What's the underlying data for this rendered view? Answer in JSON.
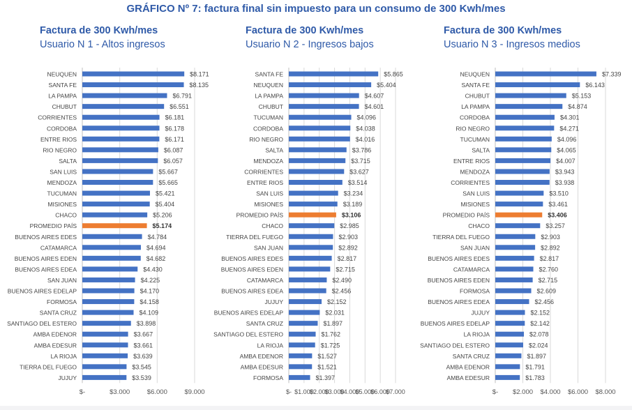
{
  "title": "GRÁFICO Nº 7: factura final sin impuesto para un consumo de 300 Kwh/mes",
  "colors": {
    "bar": "#4472c4",
    "highlight": "#ed7d31",
    "title": "#2f5aa8",
    "grid": "#d9d9d9"
  },
  "chart_data": [
    {
      "type": "bar",
      "orientation": "horizontal",
      "title": "Factura de 300 Kwh/mes",
      "subtitle": "Usuario N 1 - Altos ingresos",
      "xlim": [
        0,
        9000
      ],
      "ticks": [
        0,
        3000,
        6000,
        9000
      ],
      "tick_labels": [
        "$-",
        "$3.000",
        "$6.000",
        "$9.000"
      ],
      "grid": true,
      "highlight": "PROMEDIO PAÍS",
      "categories": [
        "NEUQUEN",
        "SANTA FE",
        "LA PAMPA",
        "CHUBUT",
        "CORRIENTES",
        "CORDOBA",
        "ENTRE RIOS",
        "RIO NEGRO",
        "SALTA",
        "SAN LUIS",
        "MENDOZA",
        "TUCUMAN",
        "MISIONES",
        "CHACO",
        "PROMEDIO PAÍS",
        "BUENOS AIRES EDES",
        "CATAMARCA",
        "BUENOS AIRES EDEN",
        "BUENOS AIRES EDEA",
        "SAN JUAN",
        "BUENOS AIRES EDELAP",
        "FORMOSA",
        "SANTA CRUZ",
        "SANTIAGO DEL ESTERO",
        "AMBA EDENOR",
        "AMBA EDESUR",
        "LA RIOJA",
        "TIERRA DEL FUEGO",
        "JUJUY"
      ],
      "values": [
        8171,
        8135,
        6791,
        6551,
        6181,
        6178,
        6171,
        6087,
        6057,
        5667,
        5665,
        5421,
        5404,
        5206,
        5174,
        4784,
        4694,
        4682,
        4430,
        4225,
        4170,
        4158,
        4109,
        3898,
        3667,
        3661,
        3639,
        3545,
        3539
      ],
      "labels": [
        "$8.171",
        "$8.135",
        "$6.791",
        "$6.551",
        "$6.181",
        "$6.178",
        "$6.171",
        "$6.087",
        "$6.057",
        "$5.667",
        "$5.665",
        "$5.421",
        "$5.404",
        "$5.206",
        "$5.174",
        "$4.784",
        "$4.694",
        "$4.682",
        "$4.430",
        "$4.225",
        "$4.170",
        "$4.158",
        "$4.109",
        "$3.898",
        "$3.667",
        "$3.661",
        "$3.639",
        "$3.545",
        "$3.539"
      ]
    },
    {
      "type": "bar",
      "orientation": "horizontal",
      "title": "Factura de 300 Kwh/mes",
      "subtitle": "Usuario N 2 - Ingresos bajos",
      "xlim": [
        0,
        7000
      ],
      "ticks": [
        0,
        1000,
        2000,
        3000,
        4000,
        5000,
        6000,
        7000
      ],
      "tick_labels": [
        "$-",
        "$1.000",
        "$2.000",
        "$3.000",
        "$4.000",
        "$5.000",
        "$6.000",
        "$7.000"
      ],
      "grid": true,
      "highlight": "PROMEDIO PAÍS",
      "categories": [
        "SANTA FE",
        "NEUQUEN",
        "LA PAMPA",
        "CHUBUT",
        "TUCUMAN",
        "CORDOBA",
        "RIO NEGRO",
        "SALTA",
        "MENDOZA",
        "CORRIENTES",
        "ENTRE RIOS",
        "SAN LUIS",
        "MISIONES",
        "PROMEDIO PAÍS",
        "CHACO",
        "TIERRA DEL FUEGO",
        "SAN JUAN",
        "BUENOS AIRES EDES",
        "BUENOS AIRES EDEN",
        "CATAMARCA",
        "BUENOS AIRES EDEA",
        "JUJUY",
        "BUENOS AIRES EDELAP",
        "SANTA CRUZ",
        "SANTIAGO DEL ESTERO",
        "LA RIOJA",
        "AMBA EDENOR",
        "AMBA EDESUR",
        "FORMOSA"
      ],
      "values": [
        5865,
        5404,
        4607,
        4601,
        4096,
        4038,
        4016,
        3786,
        3715,
        3627,
        3514,
        3234,
        3189,
        3106,
        2985,
        2903,
        2892,
        2817,
        2715,
        2490,
        2456,
        2152,
        2031,
        1897,
        1762,
        1725,
        1527,
        1521,
        1397
      ],
      "labels": [
        "$5.865",
        "$5.404",
        "$4.607",
        "$4.601",
        "$4.096",
        "$4.038",
        "$4.016",
        "$3.786",
        "$3.715",
        "$3.627",
        "$3.514",
        "$3.234",
        "$3.189",
        "$3.106",
        "$2.985",
        "$2.903",
        "$2.892",
        "$2.817",
        "$2.715",
        "$2.490",
        "$2.456",
        "$2.152",
        "$2.031",
        "$1.897",
        "$1.762",
        "$1.725",
        "$1.527",
        "$1.521",
        "$1.397"
      ]
    },
    {
      "type": "bar",
      "orientation": "horizontal",
      "title": "Factura de 300 Kwh/mes",
      "subtitle": "Usuario N 3 - Ingresos medios",
      "xlim": [
        0,
        8000
      ],
      "ticks": [
        0,
        2000,
        4000,
        6000,
        8000
      ],
      "tick_labels": [
        "$-",
        "$2.000",
        "$4.000",
        "$6.000",
        "$8.000"
      ],
      "grid": true,
      "highlight": "PROMEDIO PAÍS",
      "categories": [
        "NEUQUEN",
        "SANTA FE",
        "CHUBUT",
        "LA PAMPA",
        "CORDOBA",
        "RIO NEGRO",
        "TUCUMAN",
        "SALTA",
        "ENTRE RIOS",
        "MENDOZA",
        "CORRIENTES",
        "SAN LUIS",
        "MISIONES",
        "PROMEDIO PAÍS",
        "CHACO",
        "TIERRA DEL FUEGO",
        "SAN JUAN",
        "BUENOS AIRES EDES",
        "CATAMARCA",
        "BUENOS AIRES EDEN",
        "FORMOSA",
        "BUENOS AIRES EDEA",
        "JUJUY",
        "BUENOS AIRES EDELAP",
        "LA RIOJA",
        "SANTIAGO DEL ESTERO",
        "SANTA CRUZ",
        "AMBA EDENOR",
        "AMBA EDESUR"
      ],
      "values": [
        7339,
        6143,
        5153,
        4874,
        4301,
        4271,
        4096,
        4065,
        4007,
        3943,
        3938,
        3510,
        3461,
        3406,
        3257,
        2903,
        2892,
        2817,
        2760,
        2715,
        2609,
        2456,
        2152,
        2142,
        2078,
        2024,
        1897,
        1791,
        1783
      ],
      "labels": [
        "$7.339",
        "$6.143",
        "$5.153",
        "$4.874",
        "$4.301",
        "$4.271",
        "$4.096",
        "$4.065",
        "$4.007",
        "$3.943",
        "$3.938",
        "$3.510",
        "$3.461",
        "$3.406",
        "$3.257",
        "$2.903",
        "$2.892",
        "$2.817",
        "$2.760",
        "$2.715",
        "$2.609",
        "$2.456",
        "$2.152",
        "$2.142",
        "$2.078",
        "$2.024",
        "$1.897",
        "$1.791",
        "$1.783"
      ]
    }
  ]
}
